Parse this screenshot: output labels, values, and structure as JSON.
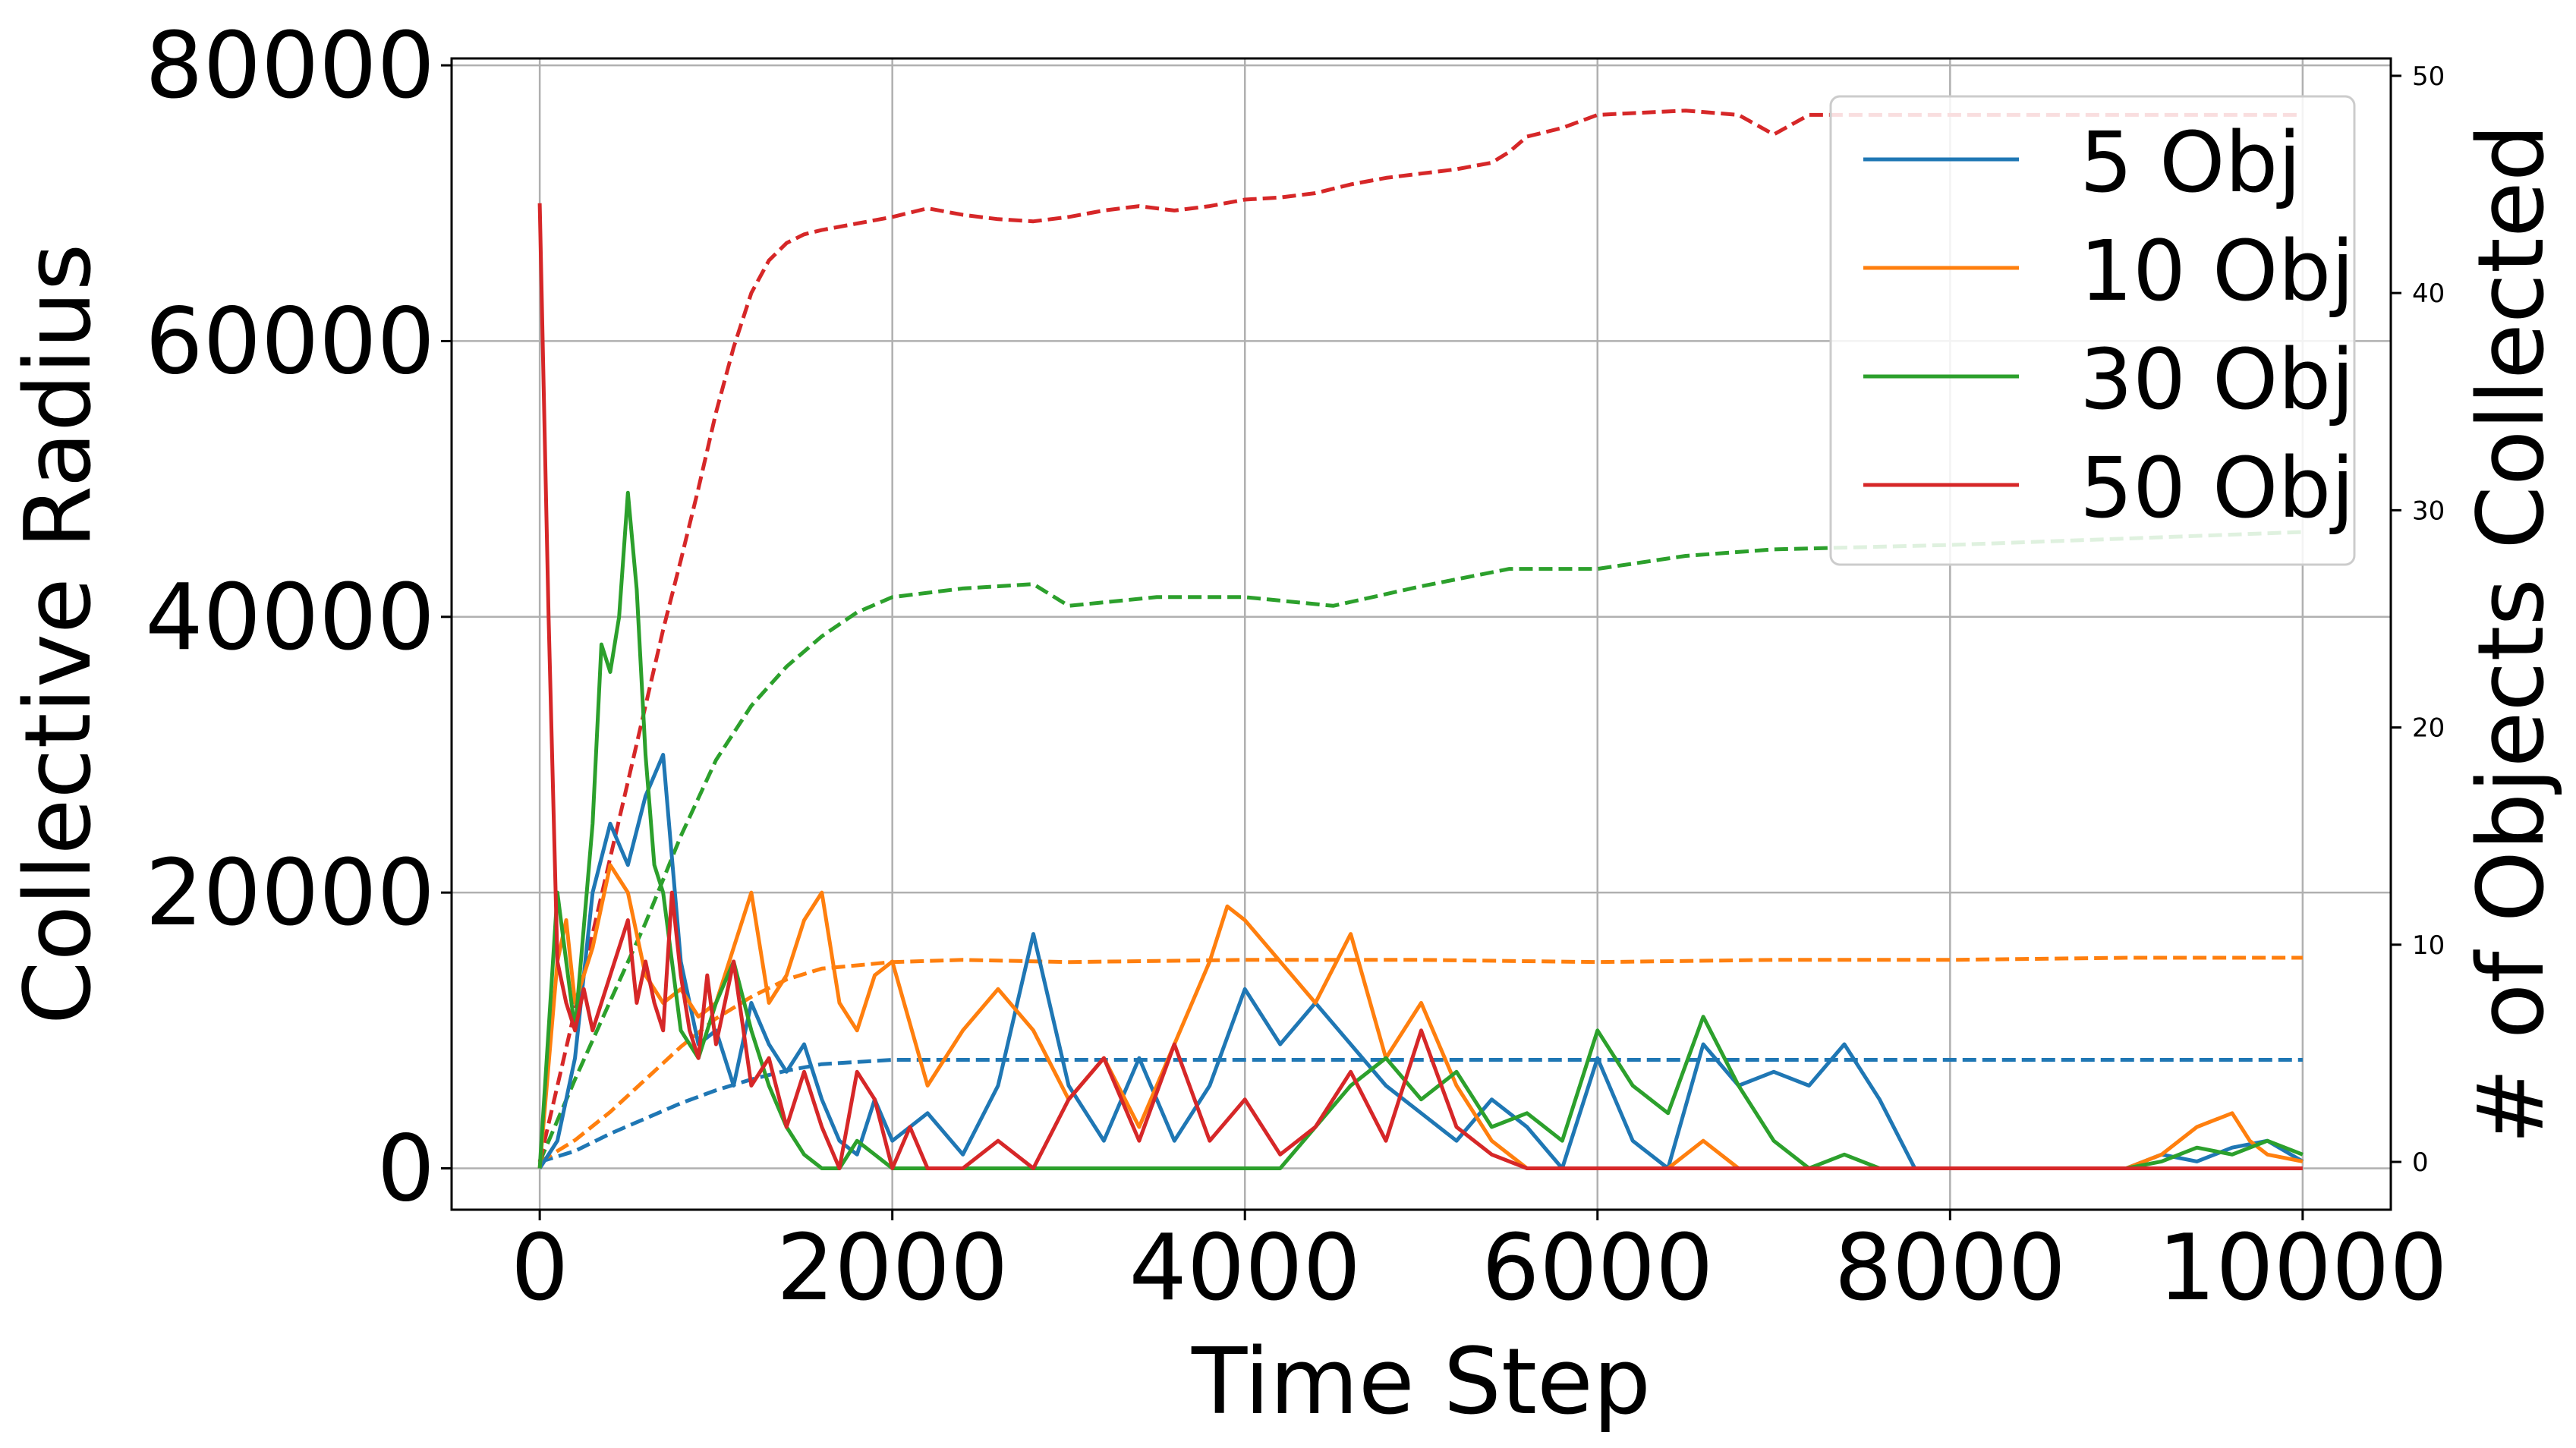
{
  "chart_data": {
    "type": "line",
    "xlabel": "Time Step",
    "ylabel": "Collective Radius",
    "y2label": "# of Objects Collected",
    "xlim": [
      -500,
      10500
    ],
    "ylim": [
      -3000,
      80500
    ],
    "y2lim": [
      -2.2,
      50.8
    ],
    "xticks": [
      0,
      2000,
      4000,
      6000,
      8000,
      10000
    ],
    "xtick_labels": [
      "0",
      "2000",
      "4000",
      "6000",
      "8000",
      "10000"
    ],
    "yticks": [
      0,
      20000,
      40000,
      60000,
      80000
    ],
    "ytick_labels": [
      "0",
      "20000",
      "40000",
      "60000",
      "80000"
    ],
    "y2ticks": [
      0,
      10,
      20,
      30,
      40,
      50
    ],
    "y2tick_labels": [
      "0",
      "10",
      "20",
      "30",
      "40",
      "50"
    ],
    "grid": true,
    "legend_position": "top-right",
    "colors": {
      "blue": "#1f77b4",
      "orange": "#ff7f0e",
      "green": "#2ca02c",
      "red": "#d62728"
    },
    "series": [
      {
        "name": "5 Obj",
        "color": "#1f77b4",
        "radius": {
          "x": [
            0,
            100,
            200,
            300,
            400,
            500,
            600,
            700,
            800,
            900,
            1000,
            1100,
            1200,
            1300,
            1400,
            1500,
            1600,
            1700,
            1800,
            1900,
            2000,
            2200,
            2400,
            2600,
            2800,
            3000,
            3200,
            3400,
            3600,
            3800,
            4000,
            4200,
            4400,
            4600,
            4800,
            5000,
            5200,
            5400,
            5600,
            5800,
            6000,
            6200,
            6400,
            6600,
            6800,
            7000,
            7200,
            7400,
            7600,
            7800,
            8000,
            9000,
            9200,
            9400,
            9600,
            9800,
            10000
          ],
          "y": [
            0,
            2000,
            8000,
            20000,
            25000,
            22000,
            27000,
            30000,
            15000,
            9000,
            10000,
            6000,
            12000,
            9000,
            7000,
            9000,
            5000,
            2000,
            1000,
            5000,
            2000,
            4000,
            1000,
            6000,
            17000,
            6000,
            2000,
            8000,
            2000,
            6000,
            13000,
            9000,
            12000,
            9000,
            6000,
            4000,
            2000,
            5000,
            3000,
            0,
            8000,
            2000,
            0,
            9000,
            6000,
            7000,
            6000,
            9000,
            5000,
            0,
            0,
            0,
            1000,
            500,
            1500,
            2000,
            500
          ]
        },
        "collected": {
          "x": [
            0,
            200,
            400,
            600,
            800,
            1000,
            1200,
            1400,
            1600,
            2000,
            3000,
            4000,
            5000,
            6000,
            7000,
            8000,
            9000,
            10000
          ],
          "y": [
            0,
            0.5,
            1.3,
            2.0,
            2.7,
            3.3,
            3.8,
            4.2,
            4.5,
            4.7,
            4.7,
            4.7,
            4.7,
            4.7,
            4.7,
            4.7,
            4.7,
            4.7
          ]
        }
      },
      {
        "name": "10 Obj",
        "color": "#ff7f0e",
        "radius": {
          "x": [
            0,
            100,
            150,
            200,
            300,
            400,
            500,
            600,
            700,
            800,
            900,
            1000,
            1100,
            1200,
            1300,
            1400,
            1500,
            1600,
            1700,
            1800,
            1900,
            2000,
            2200,
            2400,
            2600,
            2800,
            3000,
            3200,
            3400,
            3600,
            3800,
            3900,
            4000,
            4200,
            4400,
            4600,
            4800,
            5000,
            5200,
            5400,
            5600,
            5800,
            6000,
            6200,
            6400,
            6600,
            6800,
            7000,
            7200,
            7400,
            7600,
            8000,
            9000,
            9200,
            9400,
            9600,
            9700,
            9800,
            10000
          ],
          "y": [
            0,
            15000,
            18000,
            12000,
            16000,
            22000,
            20000,
            14000,
            12000,
            13000,
            11000,
            12000,
            16000,
            20000,
            12000,
            14000,
            18000,
            20000,
            12000,
            10000,
            14000,
            15000,
            6000,
            10000,
            13000,
            10000,
            5000,
            8000,
            3000,
            9000,
            15000,
            19000,
            18000,
            15000,
            12000,
            17000,
            8000,
            12000,
            6000,
            2000,
            0,
            0,
            0,
            0,
            0,
            2000,
            0,
            0,
            0,
            0,
            0,
            0,
            0,
            1000,
            3000,
            4000,
            2000,
            1000,
            500
          ]
        },
        "collected": {
          "x": [
            0,
            200,
            400,
            600,
            800,
            1000,
            1200,
            1400,
            1600,
            2000,
            2400,
            3000,
            4000,
            5000,
            6000,
            7000,
            8000,
            9000,
            10000
          ],
          "y": [
            0,
            1.0,
            2.3,
            3.8,
            5.3,
            6.6,
            7.6,
            8.4,
            8.9,
            9.2,
            9.3,
            9.2,
            9.3,
            9.3,
            9.2,
            9.3,
            9.3,
            9.4,
            9.4
          ]
        }
      },
      {
        "name": "30 Obj",
        "color": "#2ca02c",
        "radius": {
          "x": [
            0,
            100,
            200,
            300,
            350,
            400,
            450,
            500,
            550,
            600,
            650,
            700,
            800,
            900,
            1000,
            1100,
            1200,
            1300,
            1400,
            1500,
            1600,
            1700,
            1800,
            1900,
            2000,
            2200,
            2400,
            2600,
            2800,
            3000,
            3200,
            3400,
            3600,
            3800,
            4000,
            4200,
            4400,
            4600,
            4800,
            5000,
            5200,
            5400,
            5600,
            5800,
            6000,
            6200,
            6400,
            6600,
            6800,
            7000,
            7200,
            7400,
            7600,
            8000,
            9000,
            9200,
            9400,
            9600,
            9800,
            10000
          ],
          "y": [
            0,
            20000,
            10000,
            25000,
            38000,
            36000,
            40000,
            49000,
            42000,
            30000,
            22000,
            20000,
            10000,
            8000,
            12000,
            15000,
            10000,
            6000,
            3000,
            1000,
            0,
            0,
            2000,
            1000,
            0,
            0,
            0,
            0,
            0,
            0,
            0,
            0,
            0,
            0,
            0,
            0,
            3000,
            6000,
            8000,
            5000,
            7000,
            3000,
            4000,
            2000,
            10000,
            6000,
            4000,
            11000,
            6000,
            2000,
            0,
            1000,
            0,
            0,
            0,
            500,
            1500,
            1000,
            2000,
            1000
          ]
        },
        "collected": {
          "x": [
            0,
            200,
            400,
            600,
            800,
            1000,
            1200,
            1400,
            1600,
            1800,
            2000,
            2400,
            2800,
            3000,
            3500,
            4000,
            4500,
            5000,
            5500,
            6000,
            6500,
            7000,
            8000,
            9000,
            10000
          ],
          "y": [
            0,
            3.8,
            7.4,
            11.0,
            15.0,
            18.5,
            21.0,
            22.8,
            24.2,
            25.3,
            26.0,
            26.4,
            26.6,
            25.6,
            26.0,
            26.0,
            25.6,
            26.5,
            27.3,
            27.3,
            27.9,
            28.2,
            28.4,
            28.7,
            29.0
          ]
        }
      },
      {
        "name": "50 Obj",
        "color": "#d62728",
        "radius": {
          "x": [
            0,
            50,
            100,
            150,
            200,
            250,
            300,
            400,
            500,
            550,
            600,
            650,
            700,
            750,
            800,
            850,
            900,
            950,
            1000,
            1100,
            1200,
            1300,
            1400,
            1500,
            1600,
            1700,
            1800,
            1900,
            2000,
            2100,
            2200,
            2400,
            2600,
            2800,
            3000,
            3200,
            3400,
            3600,
            3800,
            4000,
            4200,
            4400,
            4600,
            4800,
            5000,
            5200,
            5400,
            5600,
            5800,
            6000,
            8000,
            10000
          ],
          "y": [
            70000,
            40000,
            15000,
            12000,
            10000,
            13000,
            10000,
            14000,
            18000,
            12000,
            15000,
            12000,
            10000,
            20000,
            14000,
            10000,
            8000,
            14000,
            9000,
            15000,
            6000,
            8000,
            3000,
            7000,
            3000,
            0,
            7000,
            5000,
            0,
            3000,
            0,
            0,
            2000,
            0,
            5000,
            8000,
            2000,
            9000,
            2000,
            5000,
            1000,
            3000,
            7000,
            2000,
            10000,
            3000,
            1000,
            0,
            0,
            0,
            0,
            0
          ]
        },
        "collected": {
          "x": [
            0,
            100,
            200,
            300,
            400,
            500,
            600,
            700,
            800,
            900,
            1000,
            1100,
            1200,
            1300,
            1400,
            1500,
            1600,
            1800,
            2000,
            2200,
            2400,
            2600,
            2800,
            3000,
            3200,
            3400,
            3600,
            3800,
            4000,
            4200,
            4400,
            4600,
            4800,
            5000,
            5200,
            5400,
            5500,
            5600,
            5800,
            6000,
            6500,
            6800,
            7000,
            7200,
            7400,
            8000,
            9000,
            10000
          ],
          "y": [
            0,
            3.5,
            7.0,
            10.5,
            14.0,
            17.5,
            21.0,
            24.5,
            27.7,
            31.0,
            34.5,
            37.5,
            40.0,
            41.5,
            42.3,
            42.7,
            42.9,
            43.2,
            43.5,
            43.9,
            43.6,
            43.4,
            43.3,
            43.5,
            43.8,
            44.0,
            43.8,
            44.0,
            44.3,
            44.4,
            44.6,
            45.0,
            45.3,
            45.5,
            45.7,
            46.0,
            46.5,
            47.2,
            47.6,
            48.2,
            48.4,
            48.2,
            47.3,
            48.2,
            48.2,
            48.2,
            48.2,
            48.2
          ]
        }
      }
    ]
  }
}
